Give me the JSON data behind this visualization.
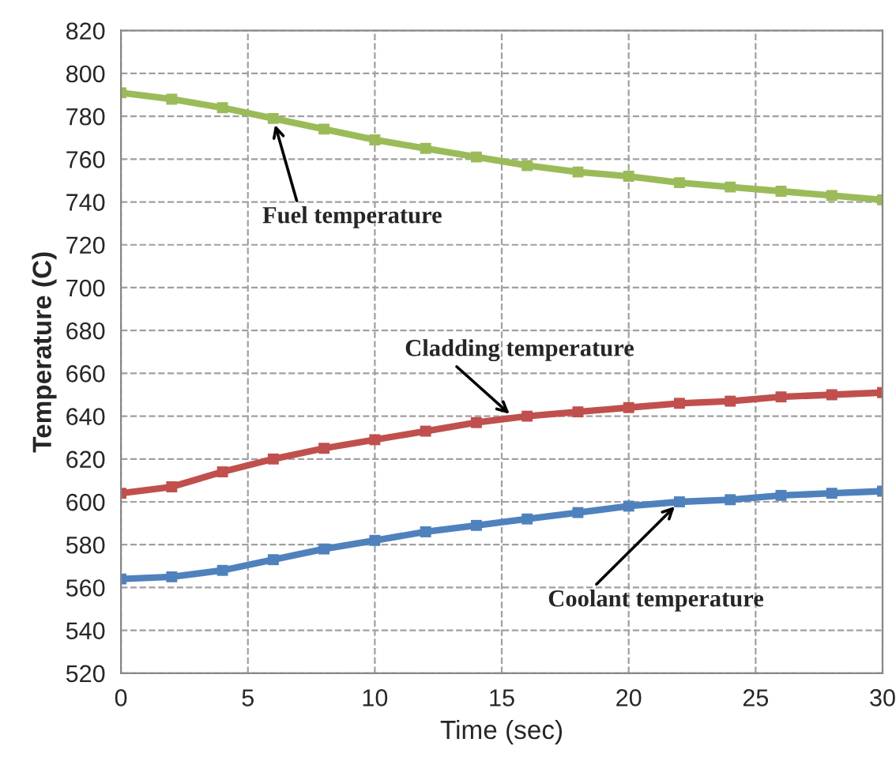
{
  "chart_data": {
    "type": "line",
    "xlabel": "Time (sec)",
    "ylabel": "Temperature (C)",
    "x": [
      0,
      2,
      4,
      6,
      8,
      10,
      12,
      14,
      16,
      18,
      20,
      22,
      24,
      26,
      28,
      30
    ],
    "series": [
      {
        "color": "#9bbb59",
        "values": [
          791,
          788,
          784,
          779,
          774,
          769,
          765,
          761,
          757,
          754,
          752,
          749,
          747,
          745,
          743,
          741
        ]
      },
      {
        "color": "#c0504d",
        "values": [
          604,
          607,
          614,
          620,
          625,
          629,
          633,
          637,
          640,
          642,
          644,
          646,
          647,
          649,
          650,
          651
        ]
      },
      {
        "color": "#4f81bd",
        "values": [
          564,
          565,
          568,
          573,
          578,
          582,
          586,
          589,
          592,
          595,
          598,
          600,
          601,
          603,
          604,
          605
        ]
      }
    ],
    "annotations": [
      {
        "text": "Fuel temperature",
        "x": 6,
        "y": 779
      },
      {
        "text": "Cladding temperature",
        "x": 15.5,
        "y": 639
      },
      {
        "text": "Coolant temperature",
        "x": 22,
        "y": 600
      }
    ],
    "xlim": [
      0,
      30
    ],
    "xticks": [
      0,
      5,
      10,
      15,
      20,
      25,
      30
    ],
    "ylim": [
      520,
      820
    ],
    "yticks": [
      520,
      540,
      560,
      580,
      600,
      620,
      640,
      660,
      680,
      700,
      720,
      740,
      760,
      780,
      800,
      820
    ],
    "grid": true,
    "marker": "square",
    "line_style": "solid",
    "legend": false
  }
}
